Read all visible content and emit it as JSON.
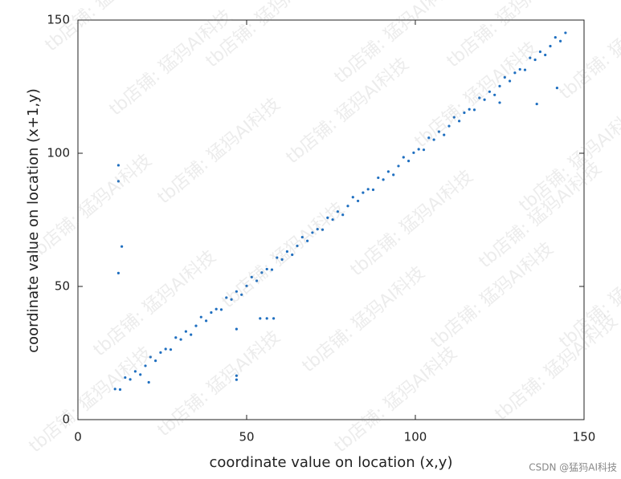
{
  "chart_data": {
    "type": "scatter",
    "xlabel": "coordinate value on location (x,y)",
    "ylabel": "coordinate value on location (x+1,y)",
    "x": [
      11,
      12.5,
      14,
      15.5,
      17,
      18.5,
      20,
      21.5,
      23,
      24.5,
      26,
      27.5,
      29,
      30.5,
      32,
      33.5,
      35,
      36.5,
      38,
      39.5,
      41,
      42.5,
      44,
      45.5,
      47,
      48.5,
      50,
      51.5,
      53,
      54.5,
      56,
      57.5,
      59,
      60.5,
      62,
      63.5,
      65,
      66.5,
      68,
      69.5,
      71,
      72.5,
      74,
      75.5,
      77,
      78.5,
      80,
      81.5,
      83,
      84.5,
      86,
      87.5,
      89,
      90.5,
      92,
      93.5,
      95,
      96.5,
      98,
      99.5,
      101,
      102.5,
      104,
      105.5,
      107,
      108.5,
      110,
      111.5,
      113,
      114.5,
      116,
      117.5,
      119,
      120.5,
      122,
      123.5,
      125,
      126.5,
      128,
      129.5,
      131,
      132.5,
      134,
      135.5,
      137,
      138.5,
      140,
      141.5,
      143,
      144.5,
      12,
      12,
      13,
      12,
      47,
      47,
      47,
      54,
      56,
      58,
      136,
      142,
      125,
      21
    ],
    "values": [
      11.5,
      11.3,
      15.8,
      15.1,
      18.1,
      16.9,
      20.2,
      23.5,
      22.1,
      25.2,
      26.5,
      26.3,
      30.8,
      30.1,
      33.1,
      31.9,
      35.2,
      38.5,
      37.1,
      40.2,
      41.5,
      41.3,
      45.8,
      45.1,
      48.1,
      46.9,
      50.2,
      53.5,
      52.1,
      55.2,
      56.5,
      56.3,
      60.8,
      60.1,
      63.1,
      61.9,
      65.2,
      68.5,
      67.1,
      70.2,
      71.5,
      71.3,
      75.8,
      75.1,
      78.1,
      76.9,
      80.2,
      83.5,
      82.1,
      85.2,
      86.5,
      86.3,
      90.8,
      90.1,
      93.1,
      91.9,
      95.2,
      98.5,
      97.1,
      100.2,
      101.5,
      101.3,
      105.8,
      105.1,
      108.1,
      106.9,
      110.2,
      113.5,
      112.1,
      115.2,
      116.5,
      116.3,
      120.8,
      120.1,
      123.1,
      121.9,
      125.2,
      128.5,
      127.1,
      130.2,
      131.5,
      131.3,
      135.8,
      135.1,
      138.1,
      136.9,
      140.2,
      143.5,
      142.1,
      145.2,
      95.5,
      89.5,
      65,
      55,
      16.5,
      15,
      34,
      38,
      38,
      38,
      118.5,
      124.5,
      119,
      14
    ],
    "color": "#1f6fc0",
    "xlim": [
      0,
      150
    ],
    "ylim": [
      0,
      150
    ],
    "xticks": [
      0,
      50,
      100,
      150
    ],
    "yticks": [
      0,
      50,
      100,
      150
    ],
    "grid": false
  },
  "watermark": "tb店铺: 猛犸AI科技",
  "credit": "CSDN @猛犸AI科技"
}
